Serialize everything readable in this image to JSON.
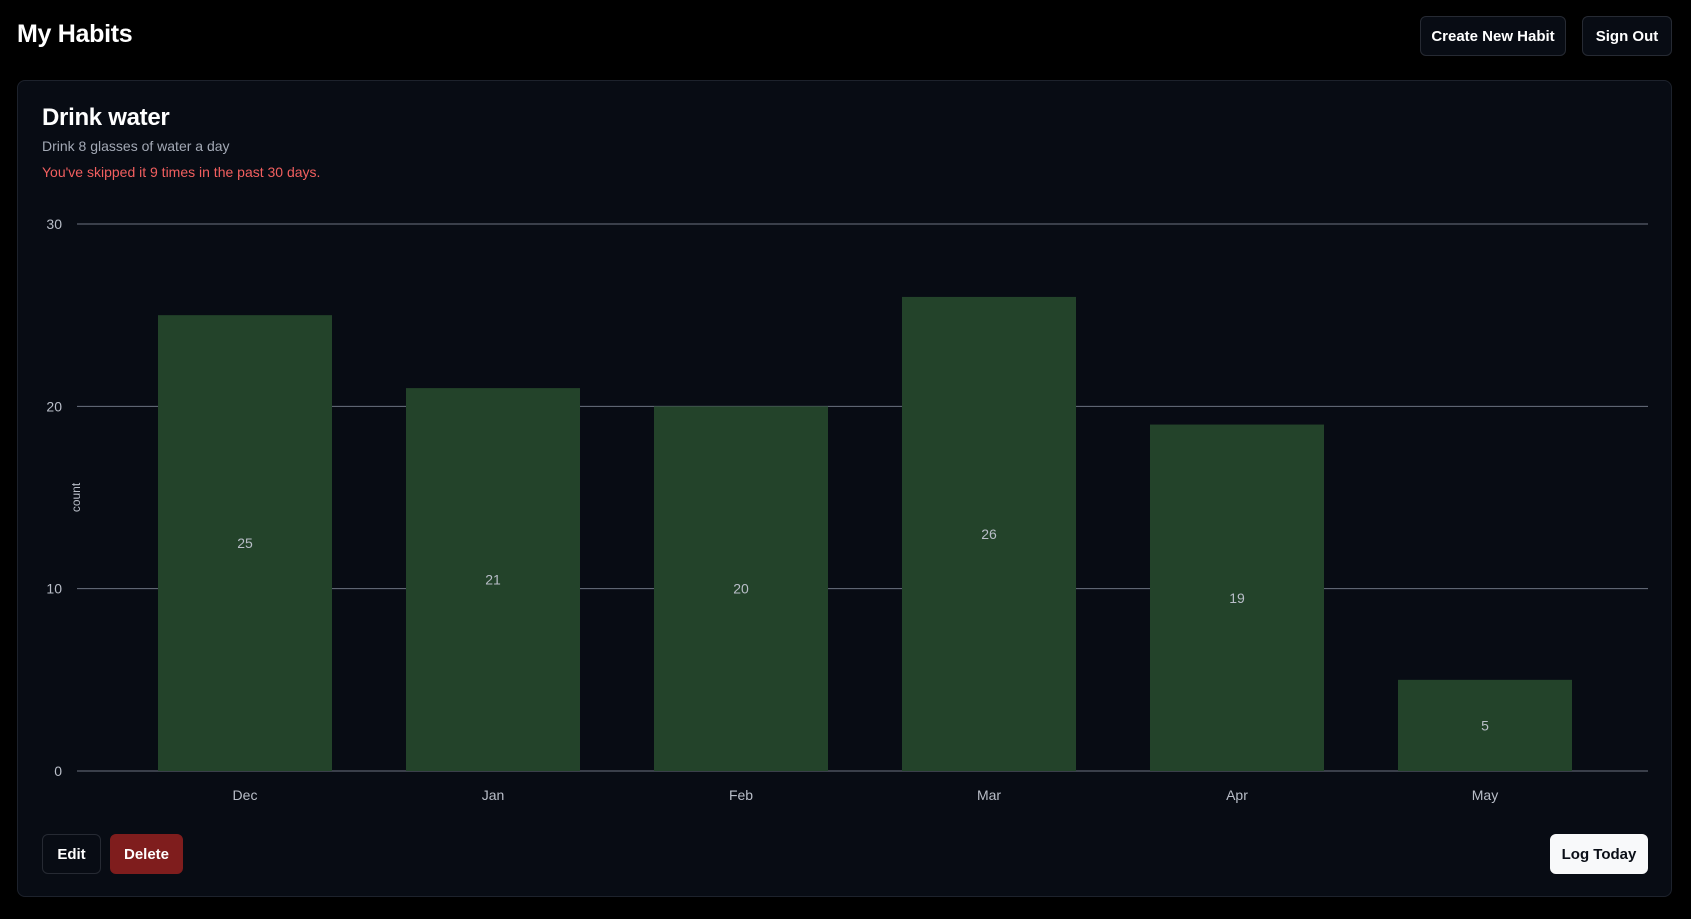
{
  "header": {
    "title": "My Habits",
    "create_label": "Create New Habit",
    "signout_label": "Sign Out"
  },
  "habit": {
    "title": "Drink water",
    "description": "Drink 8 glasses of water a day",
    "warning": "You've skipped it 9 times in the past 30 days.",
    "edit_label": "Edit",
    "delete_label": "Delete",
    "log_label": "Log Today"
  },
  "colors": {
    "bar": "#23432a",
    "grid": "#6b7280",
    "tick_text": "#b9bec8",
    "value_text": "#b9bec8",
    "warning": "#f25f5f",
    "delete": "#7f1d1d"
  },
  "chart_data": {
    "type": "bar",
    "categories": [
      "Dec",
      "Jan",
      "Feb",
      "Mar",
      "Apr",
      "May"
    ],
    "values": [
      25,
      21,
      20,
      26,
      19,
      5
    ],
    "title": "",
    "xlabel": "",
    "ylabel": "count",
    "ylim": [
      0,
      30
    ],
    "yticks": [
      0,
      10,
      20,
      30
    ],
    "grid": true,
    "value_labels": true
  }
}
